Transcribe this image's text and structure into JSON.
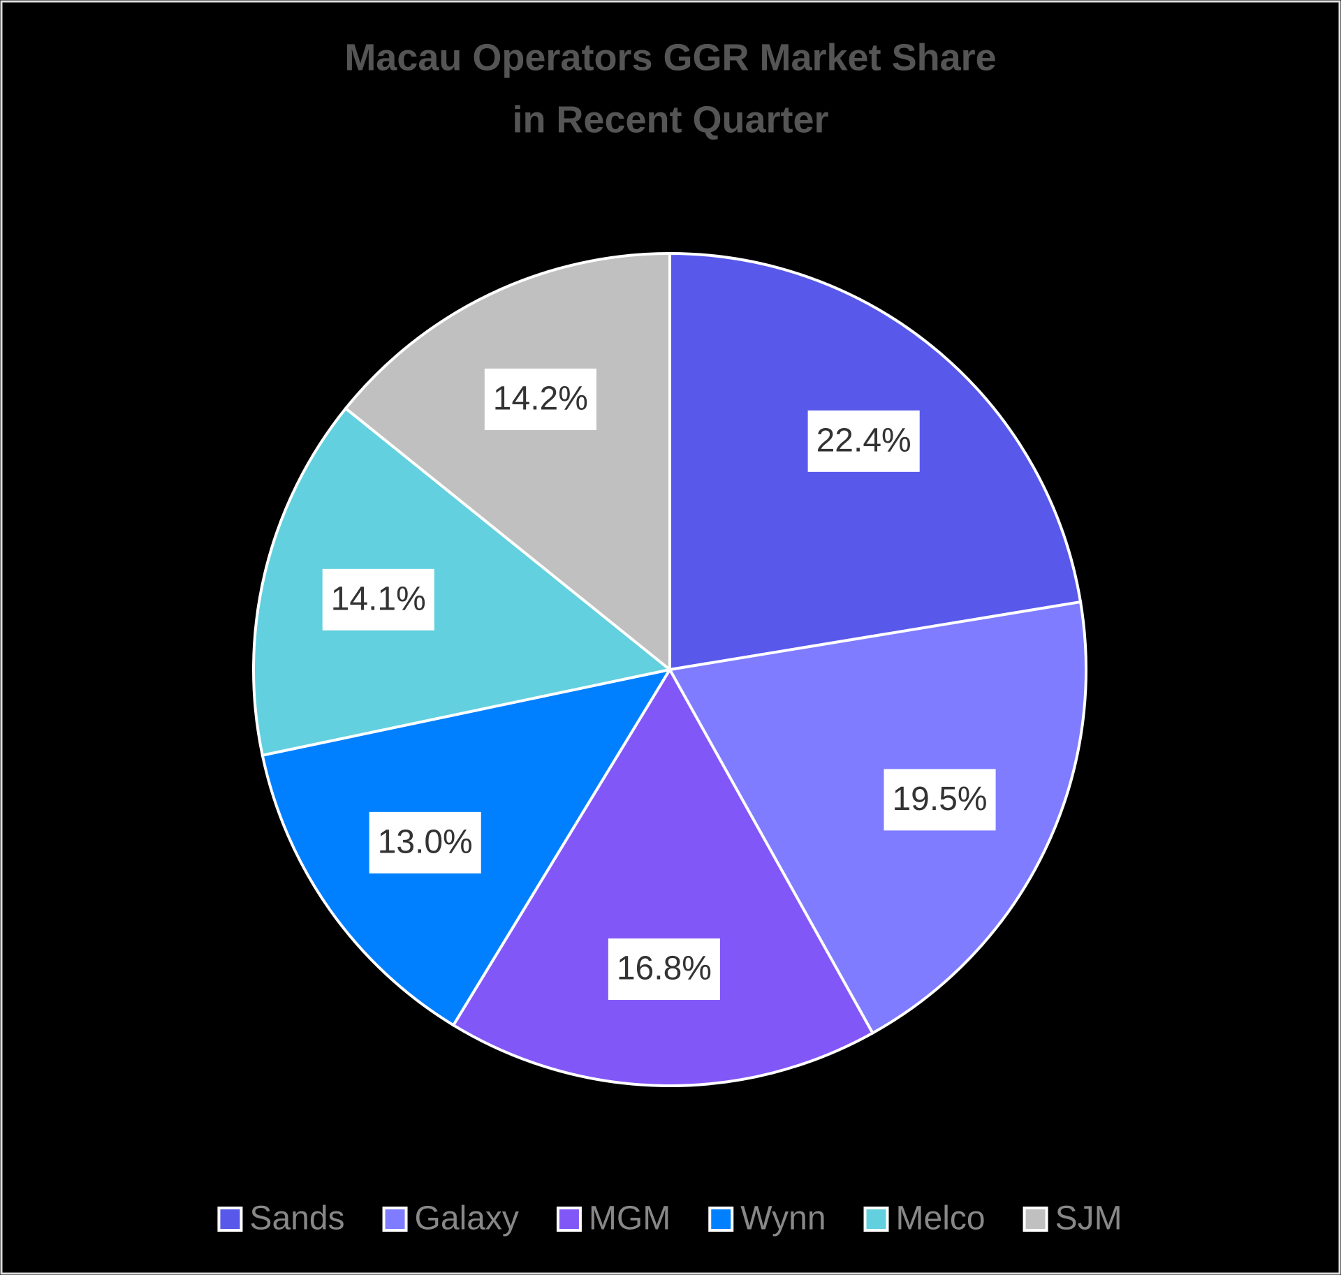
{
  "chart_data": {
    "type": "pie",
    "title": [
      "Macau Operators GGR Market Share",
      "in Recent Quarter"
    ],
    "categories": [
      "Sands",
      "Galaxy",
      "MGM",
      "Wynn",
      "Melco",
      "SJM"
    ],
    "values": [
      22.4,
      19.5,
      16.8,
      13.0,
      14.1,
      14.2
    ],
    "value_labels": [
      "22.4%",
      "19.5%",
      "16.8%",
      "13.0%",
      "14.1%",
      "14.2%"
    ],
    "colors": [
      "#5858eb",
      "#7f7cff",
      "#8257f7",
      "#0080ff",
      "#62d0de",
      "#c0c0c0"
    ],
    "legend": "bottom"
  }
}
